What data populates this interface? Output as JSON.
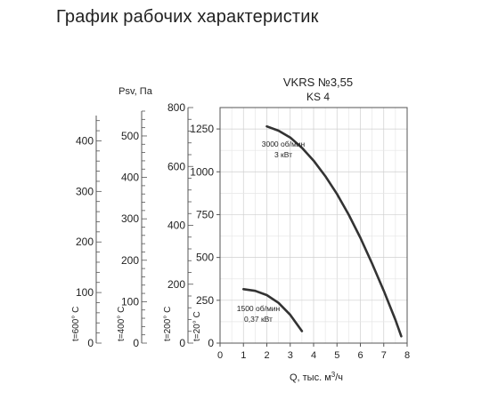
{
  "page": {
    "title": "График рабочих характеристик"
  },
  "chart_data": {
    "type": "line",
    "title": "VKRS №3,55",
    "subtitle": "KS 4",
    "xlabel": "Q, тыс. м³/ч",
    "ylabel": "Psv, Па",
    "xlim": [
      0,
      8
    ],
    "ylim": [
      0,
      1375
    ],
    "x_ticks": [
      "0",
      "1",
      "2",
      "3",
      "4",
      "5",
      "6",
      "7",
      "8"
    ],
    "y_ticks": [
      "0",
      "250",
      "500",
      "750",
      "1000",
      "1250"
    ],
    "grid": true,
    "series": [
      {
        "name": "3000 об/мин",
        "label_line2": "3 кВт",
        "color": "#333333",
        "x": [
          2.0,
          2.5,
          3.0,
          3.5,
          4.0,
          4.5,
          5.0,
          5.5,
          6.0,
          6.5,
          7.0,
          7.5,
          7.75
        ],
        "y": [
          1265,
          1240,
          1200,
          1140,
          1065,
          975,
          870,
          750,
          615,
          465,
          305,
          135,
          40
        ]
      },
      {
        "name": "1500 об/мин",
        "label_line2": "0,37 кВт",
        "color": "#333333",
        "x": [
          1.0,
          1.5,
          2.0,
          2.5,
          3.0,
          3.5
        ],
        "y": [
          315,
          305,
          280,
          235,
          165,
          70
        ]
      }
    ],
    "secondary_axes": [
      {
        "label": "t=600° С",
        "ticks": [
          "0",
          "100",
          "200",
          "300",
          "400"
        ],
        "max": 450
      },
      {
        "label": "t=400° С",
        "ticks": [
          "0",
          "100",
          "200",
          "300",
          "400",
          "500"
        ],
        "max": 560
      },
      {
        "label": "t=200° С",
        "ticks": [
          "0",
          "200",
          "400",
          "600",
          "800"
        ],
        "max": 800
      },
      {
        "label": "t=20° С",
        "ticks": [],
        "max": 1375
      }
    ]
  }
}
